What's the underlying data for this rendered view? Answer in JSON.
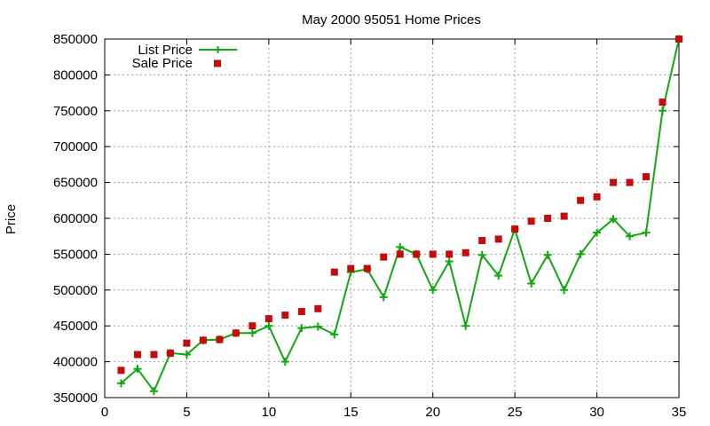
{
  "chart_data": {
    "type": "line",
    "title": "May 2000 95051 Home Prices",
    "xlabel": "",
    "ylabel": "Price",
    "xlim": [
      0,
      35
    ],
    "ylim": [
      350000,
      850000
    ],
    "xticks": [
      0,
      5,
      10,
      15,
      20,
      25,
      30,
      35
    ],
    "yticks": [
      350000,
      400000,
      450000,
      500000,
      550000,
      600000,
      650000,
      700000,
      750000,
      800000,
      850000
    ],
    "grid": true,
    "legend_position": "top-left",
    "series": [
      {
        "name": "List Price",
        "style": "lines+crosses",
        "color": "#11a811",
        "x": [
          1,
          2,
          3,
          4,
          5,
          6,
          7,
          8,
          9,
          10,
          11,
          12,
          13,
          14,
          15,
          16,
          17,
          18,
          19,
          20,
          21,
          22,
          23,
          24,
          25,
          26,
          27,
          28,
          29,
          30,
          31,
          32,
          33,
          34,
          35
        ],
        "values": [
          370000,
          390000,
          359000,
          412000,
          410000,
          430000,
          431000,
          440000,
          440000,
          450000,
          400000,
          447000,
          449000,
          438000,
          525000,
          529000,
          490000,
          560000,
          550000,
          500000,
          540000,
          450000,
          549000,
          520000,
          585000,
          509000,
          549000,
          500000,
          550000,
          580000,
          599000,
          575000,
          580000,
          750000,
          850000
        ]
      },
      {
        "name": "Sale Price",
        "style": "squares",
        "color": "#c40c0c",
        "x": [
          1,
          2,
          3,
          4,
          5,
          6,
          7,
          8,
          9,
          10,
          11,
          12,
          13,
          14,
          15,
          16,
          17,
          18,
          19,
          20,
          21,
          22,
          23,
          24,
          25,
          26,
          27,
          28,
          29,
          30,
          31,
          32,
          33,
          34,
          35
        ],
        "values": [
          388000,
          410000,
          410000,
          412000,
          426000,
          430000,
          431000,
          440000,
          450000,
          460000,
          465000,
          470000,
          474000,
          525000,
          530000,
          530000,
          546000,
          550000,
          550000,
          550000,
          550000,
          552000,
          569000,
          571000,
          585000,
          596000,
          600000,
          603000,
          625000,
          630000,
          650000,
          650000,
          658000,
          762000,
          850000
        ]
      }
    ]
  }
}
